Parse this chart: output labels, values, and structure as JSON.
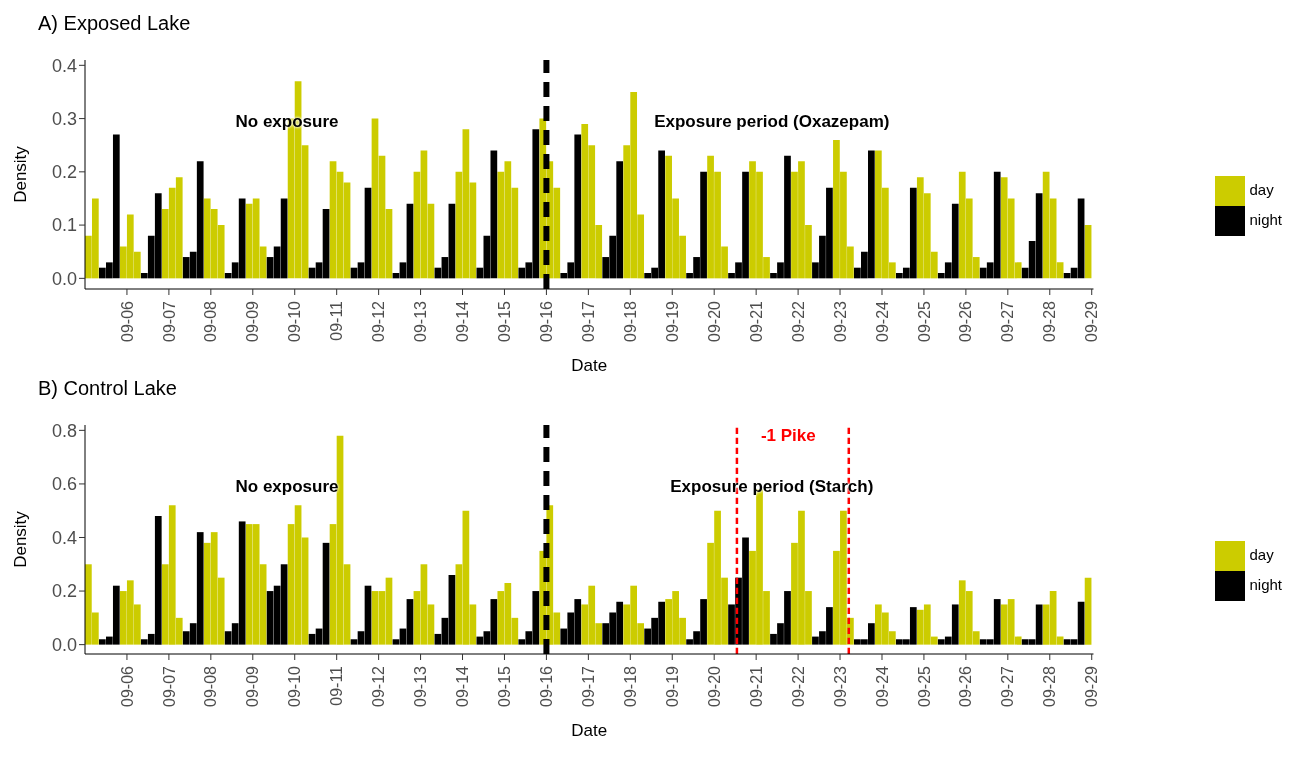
{
  "chart_data": [
    {
      "type": "bar",
      "title": "A) Exposed Lake",
      "xlabel": "Date",
      "ylabel": "Density",
      "legend": "right",
      "grid": false,
      "xlim": [
        "--09-05T00:00",
        "--09-29T01:00"
      ],
      "xticks": [
        {
          "value": "--09-06",
          "label": "09-06"
        },
        {
          "value": "--09-07",
          "label": "09-07"
        },
        {
          "value": "--09-08",
          "label": "09-08"
        },
        {
          "value": "--09-09",
          "label": "09-09"
        },
        {
          "value": "--09-10",
          "label": "09-10"
        },
        {
          "value": "--09-11",
          "label": "09-11"
        },
        {
          "value": "--09-12",
          "label": "09-12"
        },
        {
          "value": "--09-13",
          "label": "09-13"
        },
        {
          "value": "--09-14",
          "label": "09-14"
        },
        {
          "value": "--09-15",
          "label": "09-15"
        },
        {
          "value": "--09-16",
          "label": "09-16"
        },
        {
          "value": "--09-17",
          "label": "09-17"
        },
        {
          "value": "--09-18",
          "label": "09-18"
        },
        {
          "value": "--09-19",
          "label": "09-19"
        },
        {
          "value": "--09-20",
          "label": "09-20"
        },
        {
          "value": "--09-21",
          "label": "09-21"
        },
        {
          "value": "--09-22",
          "label": "09-22"
        },
        {
          "value": "--09-23",
          "label": "09-23"
        },
        {
          "value": "--09-24",
          "label": "09-24"
        },
        {
          "value": "--09-25",
          "label": "09-25"
        },
        {
          "value": "--09-26",
          "label": "09-26"
        },
        {
          "value": "--09-27",
          "label": "09-27"
        },
        {
          "value": "--09-28",
          "label": "09-28"
        },
        {
          "value": "--09-29",
          "label": "09-29"
        }
      ],
      "ylim": [
        -0.02,
        0.41
      ],
      "yticks": [
        {
          "value": 0,
          "label": "0.0"
        },
        0.1,
        0.2,
        0.3,
        0.4
      ],
      "series": [
        {
          "name": "day",
          "color": "#cccc00",
          "x": [
            "--09-05T02:00",
            "--09-05T06:00",
            "--09-05T22:00",
            "--09-06T02:00",
            "--09-06T06:00",
            "--09-06T22:00",
            "--09-07T02:00",
            "--09-07T06:00",
            "--09-07T22:00",
            "--09-08T02:00",
            "--09-08T06:00",
            "--09-08T22:00",
            "--09-09T02:00",
            "--09-09T06:00",
            "--09-09T22:00",
            "--09-10T02:00",
            "--09-10T06:00",
            "--09-10T22:00",
            "--09-11T02:00",
            "--09-11T06:00",
            "--09-11T22:00",
            "--09-12T02:00",
            "--09-12T06:00",
            "--09-12T22:00",
            "--09-13T02:00",
            "--09-13T06:00",
            "--09-13T22:00",
            "--09-14T02:00",
            "--09-14T06:00",
            "--09-14T22:00",
            "--09-15T02:00",
            "--09-15T06:00",
            "--09-15T22:00",
            "--09-16T02:00",
            "--09-16T06:00",
            "--09-16T22:00",
            "--09-17T02:00",
            "--09-17T06:00",
            "--09-17T22:00",
            "--09-18T02:00",
            "--09-18T06:00",
            "--09-18T22:00",
            "--09-19T02:00",
            "--09-19T06:00",
            "--09-19T22:00",
            "--09-20T02:00",
            "--09-20T06:00",
            "--09-20T22:00",
            "--09-21T02:00",
            "--09-21T06:00",
            "--09-21T22:00",
            "--09-22T02:00",
            "--09-22T06:00",
            "--09-22T22:00",
            "--09-23T02:00",
            "--09-23T06:00",
            "--09-23T22:00",
            "--09-24T02:00",
            "--09-24T06:00",
            "--09-24T22:00",
            "--09-25T02:00",
            "--09-25T06:00",
            "--09-25T22:00",
            "--09-26T02:00",
            "--09-26T06:00",
            "--09-26T22:00",
            "--09-27T02:00",
            "--09-27T06:00",
            "--09-27T22:00",
            "--09-28T02:00",
            "--09-28T06:00",
            "--09-28T22:00"
          ],
          "values": [
            0.08,
            0.15,
            0.06,
            0.12,
            0.05,
            0.13,
            0.17,
            0.19,
            0.15,
            0.13,
            0.1,
            0.14,
            0.15,
            0.06,
            0.3,
            0.37,
            0.25,
            0.22,
            0.2,
            0.18,
            0.3,
            0.23,
            0.13,
            0.2,
            0.24,
            0.14,
            0.2,
            0.28,
            0.18,
            0.2,
            0.22,
            0.17,
            0.3,
            0.22,
            0.17,
            0.29,
            0.25,
            0.1,
            0.25,
            0.35,
            0.12,
            0.23,
            0.15,
            0.08,
            0.23,
            0.2,
            0.06,
            0.22,
            0.2,
            0.04,
            0.2,
            0.22,
            0.1,
            0.26,
            0.2,
            0.06,
            0.24,
            0.17,
            0.03,
            0.19,
            0.16,
            0.05,
            0.2,
            0.15,
            0.04,
            0.19,
            0.15,
            0.03,
            0.2,
            0.15,
            0.03,
            0.1
          ]
        },
        {
          "name": "night",
          "color": "#000000",
          "x": [
            "--09-05T10:00",
            "--09-05T14:00",
            "--09-05T18:00",
            "--09-06T10:00",
            "--09-06T14:00",
            "--09-06T18:00",
            "--09-07T10:00",
            "--09-07T14:00",
            "--09-07T18:00",
            "--09-08T10:00",
            "--09-08T14:00",
            "--09-08T18:00",
            "--09-09T10:00",
            "--09-09T14:00",
            "--09-09T18:00",
            "--09-10T10:00",
            "--09-10T14:00",
            "--09-10T18:00",
            "--09-11T10:00",
            "--09-11T14:00",
            "--09-11T18:00",
            "--09-12T10:00",
            "--09-12T14:00",
            "--09-12T18:00",
            "--09-13T10:00",
            "--09-13T14:00",
            "--09-13T18:00",
            "--09-14T10:00",
            "--09-14T14:00",
            "--09-14T18:00",
            "--09-15T10:00",
            "--09-15T14:00",
            "--09-15T18:00",
            "--09-16T10:00",
            "--09-16T14:00",
            "--09-16T18:00",
            "--09-17T10:00",
            "--09-17T14:00",
            "--09-17T18:00",
            "--09-18T10:00",
            "--09-18T14:00",
            "--09-18T18:00",
            "--09-19T10:00",
            "--09-19T14:00",
            "--09-19T18:00",
            "--09-20T10:00",
            "--09-20T14:00",
            "--09-20T18:00",
            "--09-21T10:00",
            "--09-21T14:00",
            "--09-21T18:00",
            "--09-22T10:00",
            "--09-22T14:00",
            "--09-22T18:00",
            "--09-23T10:00",
            "--09-23T14:00",
            "--09-23T18:00",
            "--09-24T10:00",
            "--09-24T14:00",
            "--09-24T18:00",
            "--09-25T10:00",
            "--09-25T14:00",
            "--09-25T18:00",
            "--09-26T10:00",
            "--09-26T14:00",
            "--09-26T18:00",
            "--09-27T10:00",
            "--09-27T14:00",
            "--09-27T18:00",
            "--09-28T10:00",
            "--09-28T14:00",
            "--09-28T18:00"
          ],
          "values": [
            0.02,
            0.03,
            0.27,
            0.01,
            0.08,
            0.16,
            0.04,
            0.05,
            0.22,
            0.01,
            0.03,
            0.15,
            0.04,
            0.06,
            0.15,
            0.02,
            0.03,
            0.13,
            0.02,
            0.03,
            0.17,
            0.01,
            0.03,
            0.14,
            0.02,
            0.04,
            0.14,
            0.02,
            0.08,
            0.24,
            0.02,
            0.03,
            0.28,
            0.01,
            0.03,
            0.27,
            0.04,
            0.08,
            0.22,
            0.01,
            0.02,
            0.24,
            0.01,
            0.04,
            0.2,
            0.01,
            0.03,
            0.2,
            0.01,
            0.03,
            0.23,
            0.03,
            0.08,
            0.17,
            0.02,
            0.05,
            0.24,
            0.01,
            0.02,
            0.17,
            0.01,
            0.03,
            0.14,
            0.02,
            0.03,
            0.2,
            0.02,
            0.07,
            0.16,
            0.01,
            0.02,
            0.15
          ]
        }
      ],
      "ref_lines": [
        {
          "axis": "x",
          "value": "--09-16T00:00",
          "color": "#000000",
          "line_style": "dashed"
        }
      ],
      "annotations": [
        "No exposure",
        "Exposure period (Oxazepam)"
      ]
    },
    {
      "type": "bar",
      "title": "B) Control Lake",
      "xlabel": "Date",
      "ylabel": "Density",
      "legend": "right",
      "grid": false,
      "xlim": [
        "--09-05T00:00",
        "--09-29T01:00"
      ],
      "xticks": [
        {
          "value": "--09-06",
          "label": "09-06"
        },
        {
          "value": "--09-07",
          "label": "09-07"
        },
        {
          "value": "--09-08",
          "label": "09-08"
        },
        {
          "value": "--09-09",
          "label": "09-09"
        },
        {
          "value": "--09-10",
          "label": "09-10"
        },
        {
          "value": "--09-11",
          "label": "09-11"
        },
        {
          "value": "--09-12",
          "label": "09-12"
        },
        {
          "value": "--09-13",
          "label": "09-13"
        },
        {
          "value": "--09-14",
          "label": "09-14"
        },
        {
          "value": "--09-15",
          "label": "09-15"
        },
        {
          "value": "--09-16",
          "label": "09-16"
        },
        {
          "value": "--09-17",
          "label": "09-17"
        },
        {
          "value": "--09-18",
          "label": "09-18"
        },
        {
          "value": "--09-19",
          "label": "09-19"
        },
        {
          "value": "--09-20",
          "label": "09-20"
        },
        {
          "value": "--09-21",
          "label": "09-21"
        },
        {
          "value": "--09-22",
          "label": "09-22"
        },
        {
          "value": "--09-23",
          "label": "09-23"
        },
        {
          "value": "--09-24",
          "label": "09-24"
        },
        {
          "value": "--09-25",
          "label": "09-25"
        },
        {
          "value": "--09-26",
          "label": "09-26"
        },
        {
          "value": "--09-27",
          "label": "09-27"
        },
        {
          "value": "--09-28",
          "label": "09-28"
        },
        {
          "value": "--09-29",
          "label": "09-29"
        }
      ],
      "ylim": [
        -0.035,
        0.82
      ],
      "yticks": [
        {
          "value": 0,
          "label": "0.0"
        },
        0.2,
        0.4,
        0.6,
        0.8
      ],
      "series": [
        {
          "name": "day",
          "color": "#cccc00",
          "x": [
            "--09-05T02:00",
            "--09-05T06:00",
            "--09-05T22:00",
            "--09-06T02:00",
            "--09-06T06:00",
            "--09-06T22:00",
            "--09-07T02:00",
            "--09-07T06:00",
            "--09-07T22:00",
            "--09-08T02:00",
            "--09-08T06:00",
            "--09-08T22:00",
            "--09-09T02:00",
            "--09-09T06:00",
            "--09-09T22:00",
            "--09-10T02:00",
            "--09-10T06:00",
            "--09-10T22:00",
            "--09-11T02:00",
            "--09-11T06:00",
            "--09-11T22:00",
            "--09-12T02:00",
            "--09-12T06:00",
            "--09-12T22:00",
            "--09-13T02:00",
            "--09-13T06:00",
            "--09-13T22:00",
            "--09-14T02:00",
            "--09-14T06:00",
            "--09-14T22:00",
            "--09-15T02:00",
            "--09-15T06:00",
            "--09-15T22:00",
            "--09-16T02:00",
            "--09-16T06:00",
            "--09-16T22:00",
            "--09-17T02:00",
            "--09-17T06:00",
            "--09-17T22:00",
            "--09-18T02:00",
            "--09-18T06:00",
            "--09-18T22:00",
            "--09-19T02:00",
            "--09-19T06:00",
            "--09-19T22:00",
            "--09-20T02:00",
            "--09-20T06:00",
            "--09-20T22:00",
            "--09-21T02:00",
            "--09-21T06:00",
            "--09-21T22:00",
            "--09-22T02:00",
            "--09-22T06:00",
            "--09-22T22:00",
            "--09-23T02:00",
            "--09-23T06:00",
            "--09-23T22:00",
            "--09-24T02:00",
            "--09-24T06:00",
            "--09-24T22:00",
            "--09-25T02:00",
            "--09-25T06:00",
            "--09-25T22:00",
            "--09-26T02:00",
            "--09-26T06:00",
            "--09-26T22:00",
            "--09-27T02:00",
            "--09-27T06:00",
            "--09-27T22:00",
            "--09-28T02:00",
            "--09-28T06:00",
            "--09-28T22:00"
          ],
          "values": [
            0.3,
            0.12,
            0.2,
            0.24,
            0.15,
            0.3,
            0.52,
            0.1,
            0.38,
            0.42,
            0.25,
            0.45,
            0.45,
            0.3,
            0.45,
            0.52,
            0.4,
            0.45,
            0.78,
            0.3,
            0.2,
            0.2,
            0.25,
            0.2,
            0.3,
            0.15,
            0.3,
            0.5,
            0.15,
            0.2,
            0.23,
            0.1,
            0.35,
            0.52,
            0.12,
            0.15,
            0.22,
            0.08,
            0.15,
            0.22,
            0.08,
            0.17,
            0.2,
            0.1,
            0.38,
            0.5,
            0.25,
            0.35,
            0.58,
            0.2,
            0.38,
            0.5,
            0.2,
            0.35,
            0.5,
            0.1,
            0.15,
            0.12,
            0.05,
            0.13,
            0.15,
            0.03,
            0.24,
            0.2,
            0.05,
            0.15,
            0.17,
            0.03,
            0.15,
            0.2,
            0.03,
            0.25
          ]
        },
        {
          "name": "night",
          "color": "#000000",
          "x": [
            "--09-05T10:00",
            "--09-05T14:00",
            "--09-05T18:00",
            "--09-06T10:00",
            "--09-06T14:00",
            "--09-06T18:00",
            "--09-07T10:00",
            "--09-07T14:00",
            "--09-07T18:00",
            "--09-08T10:00",
            "--09-08T14:00",
            "--09-08T18:00",
            "--09-09T10:00",
            "--09-09T14:00",
            "--09-09T18:00",
            "--09-10T10:00",
            "--09-10T14:00",
            "--09-10T18:00",
            "--09-11T10:00",
            "--09-11T14:00",
            "--09-11T18:00",
            "--09-12T10:00",
            "--09-12T14:00",
            "--09-12T18:00",
            "--09-13T10:00",
            "--09-13T14:00",
            "--09-13T18:00",
            "--09-14T10:00",
            "--09-14T14:00",
            "--09-14T18:00",
            "--09-15T10:00",
            "--09-15T14:00",
            "--09-15T18:00",
            "--09-16T10:00",
            "--09-16T14:00",
            "--09-16T18:00",
            "--09-17T10:00",
            "--09-17T14:00",
            "--09-17T18:00",
            "--09-18T10:00",
            "--09-18T14:00",
            "--09-18T18:00",
            "--09-19T10:00",
            "--09-19T14:00",
            "--09-19T18:00",
            "--09-20T10:00",
            "--09-20T14:00",
            "--09-20T18:00",
            "--09-21T10:00",
            "--09-21T14:00",
            "--09-21T18:00",
            "--09-22T10:00",
            "--09-22T14:00",
            "--09-22T18:00",
            "--09-23T10:00",
            "--09-23T14:00",
            "--09-23T18:00",
            "--09-24T10:00",
            "--09-24T14:00",
            "--09-24T18:00",
            "--09-25T10:00",
            "--09-25T14:00",
            "--09-25T18:00",
            "--09-26T10:00",
            "--09-26T14:00",
            "--09-26T18:00",
            "--09-27T10:00",
            "--09-27T14:00",
            "--09-27T18:00",
            "--09-28T10:00",
            "--09-28T14:00",
            "--09-28T18:00"
          ],
          "values": [
            0.02,
            0.03,
            0.22,
            0.02,
            0.04,
            0.48,
            0.05,
            0.08,
            0.42,
            0.05,
            0.08,
            0.46,
            0.2,
            0.22,
            0.3,
            0.04,
            0.06,
            0.38,
            0.02,
            0.05,
            0.22,
            0.02,
            0.06,
            0.17,
            0.04,
            0.1,
            0.26,
            0.03,
            0.05,
            0.17,
            0.02,
            0.05,
            0.2,
            0.06,
            0.12,
            0.17,
            0.08,
            0.12,
            0.16,
            0.06,
            0.1,
            0.16,
            0.02,
            0.05,
            0.17,
            0.15,
            0.25,
            0.4,
            0.04,
            0.08,
            0.2,
            0.03,
            0.05,
            0.14,
            0.02,
            0.02,
            0.08,
            0.02,
            0.02,
            0.14,
            0.02,
            0.03,
            0.15,
            0.02,
            0.02,
            0.17,
            0.02,
            0.02,
            0.15,
            0.02,
            0.02,
            0.16
          ]
        }
      ],
      "ref_lines": [
        {
          "axis": "x",
          "value": "--09-16T00:00",
          "color": "#000000",
          "line_style": "dashed"
        },
        {
          "axis": "x",
          "value": "--09-20T13:00",
          "label": "-1 Pike",
          "color": "#ff0000",
          "line_style": "dashed"
        },
        {
          "axis": "x",
          "value": "--09-23T05:00",
          "color": "#ff0000",
          "line_style": "dashed"
        }
      ],
      "annotations": [
        "No exposure",
        "Exposure period (Starch)"
      ]
    }
  ]
}
